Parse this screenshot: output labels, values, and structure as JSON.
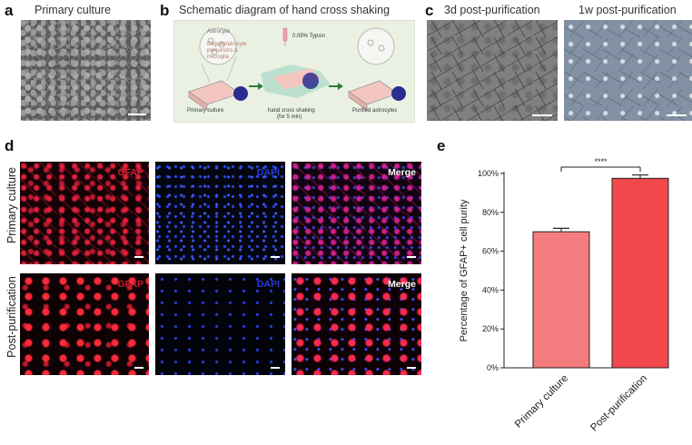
{
  "panel_a": {
    "letter": "a",
    "title": "Primary culture"
  },
  "panel_b": {
    "letter": "b",
    "title": "Schematic diagram of hand cross shaking",
    "astrocyte": "Astrocyte",
    "other_cells": [
      "Oligodendrocyte",
      "precursors &",
      "microglia"
    ],
    "trypsin": "0.05% Typsin",
    "step1": "Primary culture",
    "step2": "hand cross shaking",
    "step2_sub": "(for 5 min)",
    "step3": "Purified astrocytes"
  },
  "panel_c": {
    "letter": "c",
    "title_left": "3d post-purification",
    "title_right": "1w post-purification"
  },
  "panel_d": {
    "letter": "d",
    "row1_label": "Primary culture",
    "row2_label": "Post-purification",
    "stains": [
      "GFAP",
      "DAPI",
      "Merge"
    ]
  },
  "panel_e": {
    "letter": "e",
    "significance": "****",
    "colors": {
      "primary": "#f47b7e",
      "post": "#f2474b"
    }
  },
  "chart_data": {
    "type": "bar",
    "categories": [
      "Primary culture",
      "Post-purification"
    ],
    "values": [
      70,
      97.5
    ],
    "errors": [
      1.8,
      1.7
    ],
    "ylabel": "Percentage of  GFAP+ cell purity",
    "ylim": [
      0,
      100
    ],
    "yticks": [
      "0%",
      "20%",
      "40%",
      "60%",
      "80%",
      "100%"
    ],
    "grid": false
  }
}
